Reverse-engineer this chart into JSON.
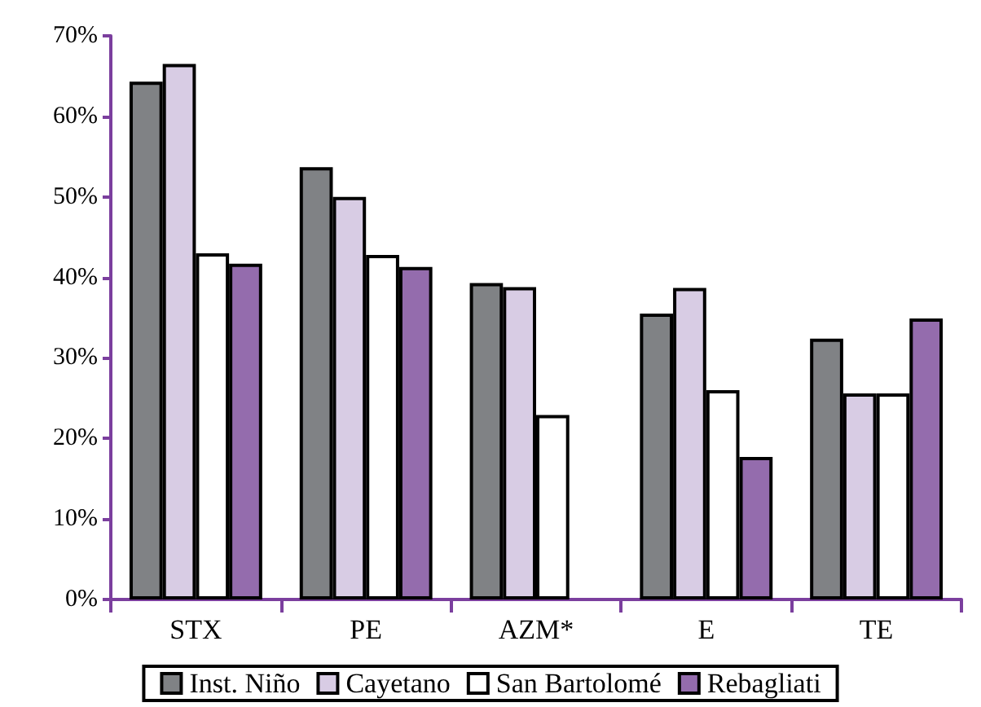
{
  "chart_data": {
    "type": "bar",
    "categories": [
      "STX",
      "PE",
      "AZM*",
      "E",
      "TE"
    ],
    "series": [
      {
        "name": "Inst. Niño",
        "color": "#808285",
        "values": [
          64.3,
          53.7,
          39.3,
          35.5,
          32.4
        ]
      },
      {
        "name": "Cayetano",
        "color": "#d8cce4",
        "values": [
          66.5,
          50,
          38.8,
          38.7,
          25.6
        ]
      },
      {
        "name": "San Bartolomé",
        "color": "#ffffff",
        "values": [
          43,
          42.8,
          22.9,
          26,
          25.6
        ]
      },
      {
        "name": "Rebagliati",
        "color": "#946cad",
        "values": [
          41.7,
          41.3,
          null,
          17.7,
          34.9
        ]
      }
    ],
    "ylim": [
      0,
      70
    ],
    "yticks": [
      {
        "value": 0,
        "label": "0%"
      },
      {
        "value": 10,
        "label": "10%"
      },
      {
        "value": 20,
        "label": "20%"
      },
      {
        "value": 30,
        "label": "30%"
      },
      {
        "value": 40,
        "label": "40%"
      },
      {
        "value": 50,
        "label": "50%"
      },
      {
        "value": 60,
        "label": "60%"
      },
      {
        "value": 70,
        "label": "70%"
      }
    ],
    "grid": false,
    "legend": "bottom"
  }
}
